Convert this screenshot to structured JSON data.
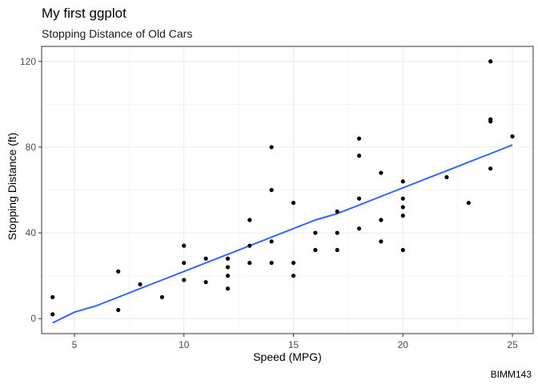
{
  "chart_data": {
    "type": "scatter",
    "title": "My first ggplot",
    "subtitle": "Stopping Distance of Old Cars",
    "xlabel": "Speed (MPG)",
    "ylabel": "Stopping Distance (ft)",
    "caption": "BIMM143",
    "xlim": [
      3.5,
      25.95
    ],
    "ylim": [
      -7,
      127
    ],
    "xticks": [
      5,
      10,
      15,
      20,
      25
    ],
    "yticks": [
      0,
      40,
      80,
      120
    ],
    "grid": true,
    "colors": {
      "points": "#000000",
      "trend": "#3366FF",
      "grid": "#ebebeb",
      "border": "#333333"
    },
    "trend_line": {
      "x": [
        4,
        5,
        6,
        7,
        8,
        9,
        10,
        11,
        12,
        13,
        14,
        15,
        16,
        17,
        18,
        19,
        20,
        21,
        22,
        23,
        24,
        25
      ],
      "y": [
        -2,
        3,
        6,
        10,
        14,
        18,
        22,
        26,
        30,
        34,
        38,
        42,
        46,
        49,
        53,
        57,
        61,
        65,
        69,
        73,
        77,
        81
      ]
    },
    "points": [
      [
        4,
        2
      ],
      [
        4,
        10
      ],
      [
        7,
        4
      ],
      [
        7,
        22
      ],
      [
        8,
        16
      ],
      [
        9,
        10
      ],
      [
        10,
        18
      ],
      [
        10,
        26
      ],
      [
        10,
        34
      ],
      [
        11,
        17
      ],
      [
        11,
        28
      ],
      [
        12,
        14
      ],
      [
        12,
        20
      ],
      [
        12,
        24
      ],
      [
        12,
        28
      ],
      [
        13,
        26
      ],
      [
        13,
        34
      ],
      [
        13,
        46
      ],
      [
        14,
        26
      ],
      [
        14,
        36
      ],
      [
        14,
        60
      ],
      [
        14,
        80
      ],
      [
        15,
        20
      ],
      [
        15,
        26
      ],
      [
        15,
        54
      ],
      [
        16,
        32
      ],
      [
        16,
        40
      ],
      [
        17,
        32
      ],
      [
        17,
        40
      ],
      [
        17,
        50
      ],
      [
        18,
        42
      ],
      [
        18,
        56
      ],
      [
        18,
        76
      ],
      [
        18,
        84
      ],
      [
        19,
        36
      ],
      [
        19,
        46
      ],
      [
        19,
        68
      ],
      [
        20,
        32
      ],
      [
        20,
        48
      ],
      [
        20,
        52
      ],
      [
        20,
        56
      ],
      [
        20,
        64
      ],
      [
        22,
        66
      ],
      [
        23,
        54
      ],
      [
        24,
        70
      ],
      [
        24,
        92
      ],
      [
        24,
        93
      ],
      [
        24,
        120
      ],
      [
        25,
        85
      ]
    ]
  }
}
